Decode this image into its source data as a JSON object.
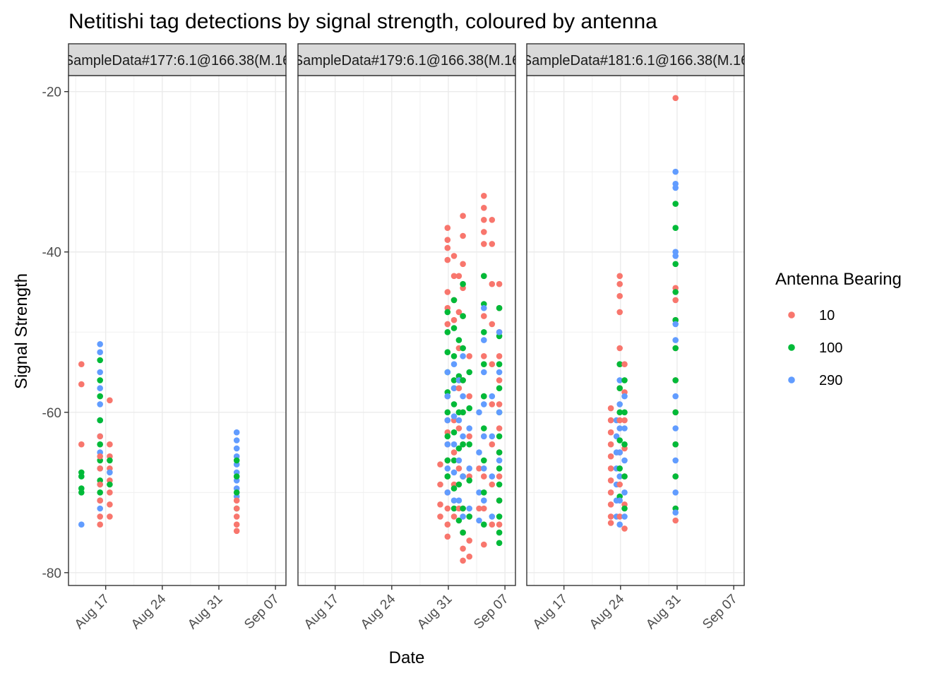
{
  "chart_data": {
    "type": "scatter",
    "title": "Netitishi tag detections by signal strength, coloured by antenna",
    "xlabel": "Date",
    "ylabel": "Signal Strength",
    "ylim": [
      -81.6,
      -18.0
    ],
    "xlim_days": [
      12.4,
      39.3
    ],
    "y_ticks": [
      -80,
      -60,
      -40,
      -20
    ],
    "x_ticks": [
      {
        "day": 17,
        "label": "Aug 17"
      },
      {
        "day": 24,
        "label": "Aug 24"
      },
      {
        "day": 31,
        "label": "Aug 31"
      },
      {
        "day": 38,
        "label": "Sep 07"
      }
    ],
    "grid": true,
    "legend": {
      "title": "Antenna Bearing",
      "position": "right",
      "entries": [
        {
          "label": "10",
          "color": "#F8766D"
        },
        {
          "label": "100",
          "color": "#00BA38"
        },
        {
          "label": "290",
          "color": "#619CFF"
        }
      ]
    },
    "panels": [
      {
        "strip": "SampleData#177:6.1@166.38(M.16",
        "detections": [
          {
            "day": 14.0,
            "antenna": "10",
            "signal": [
              -54,
              -56.5,
              -64
            ]
          },
          {
            "day": 14.0,
            "antenna": "100",
            "signal": [
              -67.5,
              -68,
              -69.5,
              -70
            ]
          },
          {
            "day": 14.0,
            "antenna": "290",
            "signal": [
              -74
            ]
          },
          {
            "day": 16.3,
            "antenna": "290",
            "signal": [
              -51.5,
              -52.5,
              -55,
              -57,
              -59,
              -61,
              -63,
              -65,
              -67,
              -69,
              -71,
              -72
            ]
          },
          {
            "day": 16.3,
            "antenna": "100",
            "signal": [
              -53.5,
              -56,
              -58,
              -61,
              -64,
              -66,
              -68.5,
              -70
            ]
          },
          {
            "day": 16.3,
            "antenna": "10",
            "signal": [
              -63,
              -65.5,
              -67,
              -69,
              -71,
              -73,
              -74
            ]
          },
          {
            "day": 17.5,
            "antenna": "10",
            "signal": [
              -58.5,
              -64,
              -65.5,
              -67,
              -68.5,
              -70,
              -71.5,
              -73
            ]
          },
          {
            "day": 17.5,
            "antenna": "100",
            "signal": [
              -66,
              -69
            ]
          },
          {
            "day": 17.5,
            "antenna": "290",
            "signal": [
              -67.5
            ]
          },
          {
            "day": 33.2,
            "antenna": "290",
            "signal": [
              -62.5,
              -63.5,
              -64.5,
              -65.5,
              -66.5,
              -67.5,
              -68.5,
              -69.5,
              -70.5
            ]
          },
          {
            "day": 33.2,
            "antenna": "100",
            "signal": [
              -66,
              -68,
              -70,
              -72
            ]
          },
          {
            "day": 33.2,
            "antenna": "10",
            "signal": [
              -71,
              -72,
              -73,
              -74,
              -74.8
            ]
          }
        ]
      },
      {
        "strip": "SampleData#179:6.1@166.38(M.16",
        "detections": [
          {
            "day": 30.0,
            "antenna": "10",
            "signal": [
              -66.5,
              -69,
              -71.5,
              -73
            ]
          },
          {
            "day": 30.9,
            "antenna": "10",
            "signal": [
              -37,
              -38.5,
              -39.5,
              -41,
              -45,
              -47,
              -49,
              -58,
              -61,
              -62.5,
              -64,
              -66,
              -68,
              -70,
              -72,
              -74,
              -75.5
            ]
          },
          {
            "day": 30.9,
            "antenna": "100",
            "signal": [
              -47.5,
              -50,
              -52.5,
              -55,
              -57.5,
              -60,
              -63,
              -66,
              -68
            ]
          },
          {
            "day": 30.9,
            "antenna": "290",
            "signal": [
              -55,
              -58,
              -61,
              -64,
              -67,
              -70
            ]
          },
          {
            "day": 31.7,
            "antenna": "10",
            "signal": [
              -40.5,
              -43,
              -46,
              -48.5,
              -57,
              -61,
              -65,
              -69,
              -73
            ]
          },
          {
            "day": 31.7,
            "antenna": "100",
            "signal": [
              -46,
              -49.5,
              -53,
              -56,
              -59,
              -62.5,
              -66,
              -69.5,
              -72
            ]
          },
          {
            "day": 31.7,
            "antenna": "290",
            "signal": [
              -54,
              -57,
              -60.5,
              -64,
              -67.5,
              -71
            ]
          },
          {
            "day": 32.3,
            "antenna": "10",
            "signal": [
              -43,
              -47.5,
              -52,
              -57,
              -62,
              -67,
              -72
            ]
          },
          {
            "day": 32.3,
            "antenna": "100",
            "signal": [
              -51,
              -55.5,
              -60,
              -64.5,
              -69,
              -73.5
            ]
          },
          {
            "day": 32.3,
            "antenna": "290",
            "signal": [
              -56,
              -61,
              -66,
              -71
            ]
          },
          {
            "day": 32.8,
            "antenna": "10",
            "signal": [
              -35.5,
              -38,
              -41.5,
              -44.5,
              -48,
              -52,
              -56,
              -60,
              -64,
              -68,
              -72,
              -75,
              -77,
              -78.5
            ]
          },
          {
            "day": 32.8,
            "antenna": "100",
            "signal": [
              -44,
              -48,
              -52,
              -56,
              -60,
              -64,
              -68,
              -72,
              -75
            ]
          },
          {
            "day": 32.8,
            "antenna": "290",
            "signal": [
              -53,
              -58,
              -63,
              -68,
              -73
            ]
          },
          {
            "day": 33.6,
            "antenna": "10",
            "signal": [
              -53,
              -58,
              -63,
              -68,
              -73,
              -76,
              -78
            ]
          },
          {
            "day": 33.6,
            "antenna": "100",
            "signal": [
              -55,
              -59.5,
              -64,
              -68.5,
              -73
            ]
          },
          {
            "day": 33.6,
            "antenna": "290",
            "signal": [
              -62,
              -67,
              -72
            ]
          },
          {
            "day": 34.8,
            "antenna": "290",
            "signal": [
              -60,
              -65,
              -70,
              -73.5
            ]
          },
          {
            "day": 34.8,
            "antenna": "10",
            "signal": [
              -67,
              -72
            ]
          },
          {
            "day": 35.4,
            "antenna": "10",
            "signal": [
              -33,
              -34.5,
              -36,
              -37.5,
              -39,
              -43,
              -48,
              -53,
              -58,
              -63,
              -68,
              -72,
              -76.5
            ]
          },
          {
            "day": 35.4,
            "antenna": "100",
            "signal": [
              -43,
              -46.5,
              -50,
              -54,
              -58,
              -62,
              -66,
              -70,
              -74
            ]
          },
          {
            "day": 35.4,
            "antenna": "290",
            "signal": [
              -47,
              -51,
              -55,
              -59,
              -63,
              -67,
              -71
            ]
          },
          {
            "day": 36.4,
            "antenna": "10",
            "signal": [
              -36,
              -39,
              -44,
              -49,
              -54,
              -59,
              -64,
              -69,
              -74
            ]
          },
          {
            "day": 36.4,
            "antenna": "290",
            "signal": [
              -58,
              -63,
              -68,
              -73
            ]
          },
          {
            "day": 37.3,
            "antenna": "10",
            "signal": [
              -44,
              -47,
              -50,
              -53,
              -56,
              -59,
              -62,
              -65,
              -68,
              -71,
              -74
            ]
          },
          {
            "day": 37.3,
            "antenna": "100",
            "signal": [
              -47,
              -50.5,
              -54,
              -57,
              -60,
              -63,
              -65,
              -67,
              -69,
              -71,
              -73,
              -75,
              -76.3
            ]
          },
          {
            "day": 37.3,
            "antenna": "290",
            "signal": [
              -50,
              -55,
              -60,
              -66
            ]
          }
        ]
      },
      {
        "strip": "SampleData#181:6.1@166.38(M.16",
        "detections": [
          {
            "day": 22.8,
            "antenna": "10",
            "signal": [
              -59.5,
              -61,
              -62.5,
              -64,
              -65.5,
              -67,
              -68.5,
              -70,
              -71.5,
              -73,
              -73.8
            ]
          },
          {
            "day": 23.5,
            "antenna": "290",
            "signal": [
              -61,
              -63,
              -65,
              -67,
              -69,
              -71,
              -73
            ]
          },
          {
            "day": 23.9,
            "antenna": "10",
            "signal": [
              -43,
              -44,
              -45.5,
              -47.5,
              -52,
              -54,
              -57,
              -61,
              -65,
              -69,
              -73
            ]
          },
          {
            "day": 23.9,
            "antenna": "100",
            "signal": [
              -54,
              -57,
              -60,
              -63.5,
              -67,
              -70.5
            ]
          },
          {
            "day": 23.9,
            "antenna": "290",
            "signal": [
              -56,
              -59,
              -62,
              -65,
              -68,
              -71,
              -74
            ]
          },
          {
            "day": 24.5,
            "antenna": "10",
            "signal": [
              -54,
              -57.5,
              -61,
              -64.5,
              -68,
              -71.5,
              -74.5
            ]
          },
          {
            "day": 24.5,
            "antenna": "100",
            "signal": [
              -56,
              -60,
              -64,
              -68,
              -72
            ]
          },
          {
            "day": 24.5,
            "antenna": "290",
            "signal": [
              -58,
              -62,
              -66,
              -70,
              -73
            ]
          },
          {
            "day": 30.8,
            "antenna": "10",
            "signal": [
              -20.8,
              -44.5,
              -46,
              -48.5,
              -52,
              -56,
              -60,
              -64,
              -68,
              -72,
              -73.5
            ]
          },
          {
            "day": 30.8,
            "antenna": "100",
            "signal": [
              -34,
              -37,
              -41.5,
              -45,
              -48.5,
              -52,
              -56,
              -60,
              -64,
              -68,
              -72
            ]
          },
          {
            "day": 30.8,
            "antenna": "290",
            "signal": [
              -30,
              -31.5,
              -32,
              -40,
              -40.5,
              -49,
              -51,
              -58,
              -62,
              -66,
              -70,
              -72.5
            ]
          }
        ]
      }
    ]
  }
}
